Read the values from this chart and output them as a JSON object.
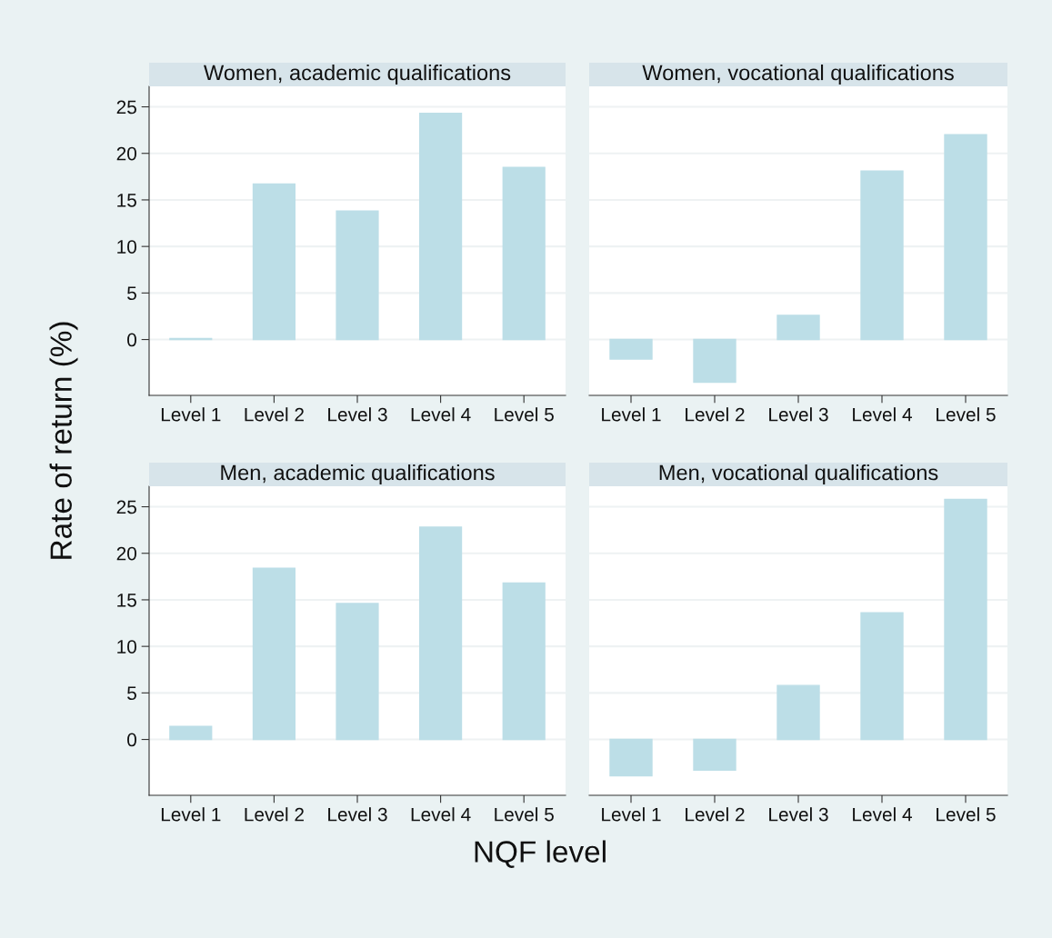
{
  "chart_data": [
    {
      "type": "bar",
      "title": "Women, academic qualifications",
      "ylabel": "Rate of return (%)",
      "categories": [
        "Level 1",
        "Level 2",
        "Level 3",
        "Level 4",
        "Level 5"
      ],
      "values": [
        0.1,
        16.7,
        13.8,
        24.3,
        18.5
      ],
      "color": "#bcdee7",
      "ylim": [
        -6.0,
        27.2
      ],
      "yticks": [
        0,
        5,
        10,
        15,
        20,
        25
      ],
      "grid": "y"
    },
    {
      "type": "bar",
      "title": "Women, vocational qualifications",
      "categories": [
        "Level 1",
        "Level 2",
        "Level 3",
        "Level 4",
        "Level 5"
      ],
      "values": [
        -2.1,
        -4.6,
        2.6,
        18.1,
        22.0
      ],
      "color": "#bcdee7",
      "ylim": [
        -6.0,
        27.2
      ],
      "yticks": [
        0,
        5,
        10,
        15,
        20,
        25
      ],
      "grid": "y",
      "tick_labels": "x"
    },
    {
      "type": "bar",
      "title": "Men, academic qualifications",
      "xlabel": "NQF level",
      "categories": [
        "Level 1",
        "Level 2",
        "Level 3",
        "Level 4",
        "Level 5"
      ],
      "values": [
        1.4,
        18.4,
        14.6,
        22.8,
        16.8
      ],
      "color": "#bcdee7",
      "ylim": [
        -6.0,
        27.2
      ],
      "yticks": [
        0,
        5,
        10,
        15,
        20,
        25
      ],
      "grid": "y"
    },
    {
      "type": "bar",
      "title": "Men, vocational qualifications",
      "categories": [
        "Level 1",
        "Level 2",
        "Level 3",
        "Level 4",
        "Level 5"
      ],
      "values": [
        -3.9,
        -3.3,
        5.8,
        13.6,
        25.8
      ],
      "color": "#bcdee7",
      "ylim": [
        -6.0,
        27.2
      ],
      "yticks": [
        0,
        5,
        10,
        15,
        20,
        25
      ],
      "grid": "y",
      "tick_labels": "x"
    }
  ]
}
